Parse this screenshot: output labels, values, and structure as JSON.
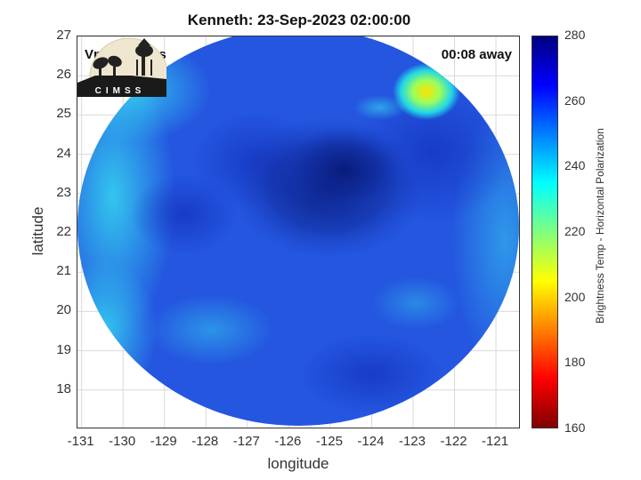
{
  "title": "Kenneth: 23-Sep-2023 02:00:00",
  "vmax": "Vmax: 24 kts",
  "time_away": "00:08 away",
  "x_axis": {
    "label": "longitude",
    "range": [
      -131.1,
      -120.4
    ],
    "ticks": [
      "-131",
      "-130",
      "-129",
      "-128",
      "-127",
      "-126",
      "-125",
      "-124",
      "-123",
      "-122",
      "-121"
    ]
  },
  "y_axis": {
    "label": "latitude",
    "range": [
      17.0,
      27.0
    ],
    "ticks": [
      "27",
      "26",
      "25",
      "24",
      "23",
      "22",
      "21",
      "20",
      "19",
      "18"
    ]
  },
  "colorbar": {
    "label": "Brightness Temp - Horizontal Polarization",
    "range": [
      160,
      280
    ],
    "ticks": [
      "280",
      "260",
      "240",
      "220",
      "200",
      "180",
      "160"
    ],
    "colormap": "jet"
  },
  "logo_text": "CIMSS",
  "colors": {
    "swath_base": "#2456e0",
    "cold_core": "#0a1f8a",
    "warm_spot": "#f5e600",
    "cyan_edge": "#22c6ee",
    "grid": "#d9d9d9"
  },
  "chart_data": {
    "type": "heatmap",
    "title": "Kenneth: 23-Sep-2023 02:00:00",
    "xlabel": "longitude",
    "ylabel": "latitude",
    "xlim": [
      -131.1,
      -120.4
    ],
    "ylim": [
      17.0,
      27.0
    ],
    "grid": true,
    "value_label": "Brightness Temp - Horizontal Polarization",
    "value_range": [
      160,
      280
    ],
    "features": [
      {
        "name": "swath background",
        "value": 255
      },
      {
        "name": "cold core",
        "lon": -125.5,
        "lat": 23.2,
        "value": 268
      },
      {
        "name": "warm spot",
        "lon": -122.6,
        "lat": 25.5,
        "value": 205
      },
      {
        "name": "western edge",
        "lon": -130.5,
        "lat": 21.5,
        "value": 235
      }
    ]
  }
}
